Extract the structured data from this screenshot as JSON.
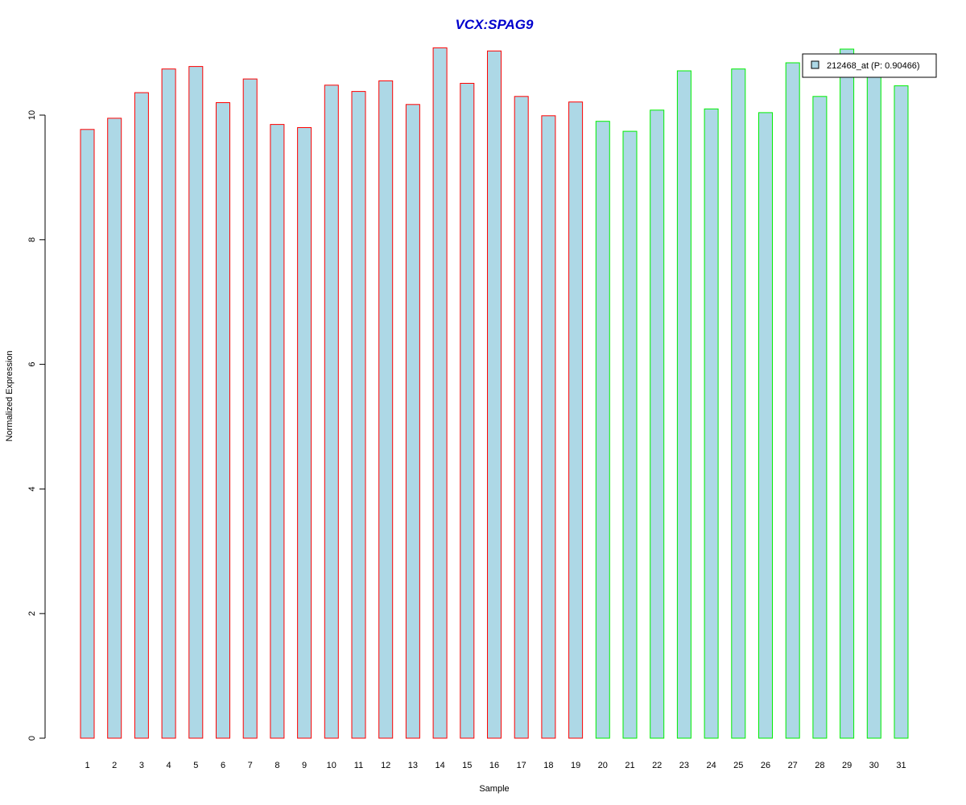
{
  "chart_data": {
    "type": "bar",
    "title": "VCX:SPAG9",
    "xlabel": "Sample",
    "ylabel": "Normalized Expression",
    "ylim": [
      0,
      11.1
    ],
    "yticks": [
      0,
      2,
      4,
      6,
      8,
      10
    ],
    "grid": false,
    "legend_position": "top-right",
    "categories": [
      "1",
      "2",
      "3",
      "4",
      "5",
      "6",
      "7",
      "8",
      "9",
      "10",
      "11",
      "12",
      "13",
      "14",
      "15",
      "16",
      "17",
      "18",
      "19",
      "20",
      "21",
      "22",
      "23",
      "24",
      "25",
      "26",
      "27",
      "28",
      "29",
      "30",
      "31"
    ],
    "series": [
      {
        "name": "212468_at (P: 0.90466)",
        "values": [
          9.77,
          9.95,
          10.36,
          10.74,
          10.78,
          10.2,
          10.58,
          9.85,
          9.8,
          10.48,
          10.38,
          10.55,
          10.17,
          11.08,
          10.51,
          11.03,
          10.3,
          9.99,
          10.21,
          9.9,
          9.74,
          10.08,
          10.71,
          10.1,
          10.74,
          10.04,
          10.84,
          10.3,
          11.06,
          10.68,
          10.47
        ]
      }
    ],
    "group_borders": [
      "#ff0000",
      "#ff0000",
      "#ff0000",
      "#ff0000",
      "#ff0000",
      "#ff0000",
      "#ff0000",
      "#ff0000",
      "#ff0000",
      "#ff0000",
      "#ff0000",
      "#ff0000",
      "#ff0000",
      "#ff0000",
      "#ff0000",
      "#ff0000",
      "#ff0000",
      "#ff0000",
      "#ff0000",
      "#00ee00",
      "#00ee00",
      "#00ee00",
      "#00ee00",
      "#00ee00",
      "#00ee00",
      "#00ee00",
      "#00ee00",
      "#00ee00",
      "#00ee00",
      "#00ee00",
      "#00ee00"
    ]
  },
  "colors": {
    "bar_fill": "#add8e6",
    "title": "#0000cd",
    "axis": "#000000"
  }
}
